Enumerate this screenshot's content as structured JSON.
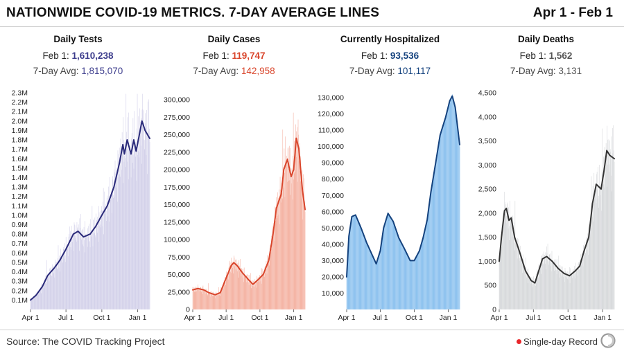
{
  "header": {
    "title": "NATIONWIDE COVID-19 METRICS. 7-DAY AVERAGE LINES",
    "range": "Apr 1 - Feb 1"
  },
  "footer": {
    "source": "Source: The COVID Tracking Project",
    "legend_label": "Single-day Record",
    "legend_color": "#e8262a"
  },
  "panels": [
    {
      "title": "Daily Tests",
      "latest_label": "Feb 1:",
      "latest_value": "1,610,238",
      "avg_label": "7-Day Avg:",
      "avg_value": "1,815,070",
      "accent": "#3c3c8c"
    },
    {
      "title": "Daily Cases",
      "latest_label": "Feb 1:",
      "latest_value": "119,747",
      "avg_label": "7-Day Avg:",
      "avg_value": "142,958",
      "accent": "#d9452b"
    },
    {
      "title": "Currently Hospitalized",
      "latest_label": "Feb 1:",
      "latest_value": "93,536",
      "avg_label": "7-Day Avg:",
      "avg_value": "101,117",
      "accent": "#14427e"
    },
    {
      "title": "Daily Deaths",
      "latest_label": "Feb 1:",
      "latest_value": "1,562",
      "avg_label": "7-Day Avg:",
      "avg_value": "3,131",
      "accent": "#555555"
    }
  ],
  "chart_data": [
    {
      "type": "bar",
      "title": "Daily Tests",
      "x_range": [
        "2020-04-01",
        "2021-02-01"
      ],
      "x_ticks": [
        {
          "date": "2020-04-01",
          "label": "Apr 1"
        },
        {
          "date": "2020-07-01",
          "label": "Jul 1"
        },
        {
          "date": "2020-10-01",
          "label": "Oct 1"
        },
        {
          "date": "2021-01-01",
          "label": "Jan 1"
        }
      ],
      "ylim": [
        0,
        2300000
      ],
      "y_ticks": [
        {
          "value": 100000,
          "label": "0.1M"
        },
        {
          "value": 200000,
          "label": "0.2M"
        },
        {
          "value": 300000,
          "label": "0.3M"
        },
        {
          "value": 400000,
          "label": "0.4M"
        },
        {
          "value": 500000,
          "label": "0.5M"
        },
        {
          "value": 600000,
          "label": "0.6M"
        },
        {
          "value": 700000,
          "label": "0.7M"
        },
        {
          "value": 800000,
          "label": "0.8M"
        },
        {
          "value": 900000,
          "label": "0.9M"
        },
        {
          "value": 1000000,
          "label": "1.0M"
        },
        {
          "value": 1100000,
          "label": "1.1M"
        },
        {
          "value": 1200000,
          "label": "1.2M"
        },
        {
          "value": 1300000,
          "label": "1.3M"
        },
        {
          "value": 1400000,
          "label": "1.4M"
        },
        {
          "value": 1500000,
          "label": "1.5M"
        },
        {
          "value": 1600000,
          "label": "1.6M"
        },
        {
          "value": 1700000,
          "label": "1.7M"
        },
        {
          "value": 1800000,
          "label": "1.8M"
        },
        {
          "value": 1900000,
          "label": "1.9M"
        },
        {
          "value": 2000000,
          "label": "2.0M"
        },
        {
          "value": 2100000,
          "label": "2.1M"
        },
        {
          "value": 2200000,
          "label": "2.2M"
        },
        {
          "value": 2300000,
          "label": "2.3M"
        }
      ],
      "bar_color": "#d4d2ea",
      "line_color": "#2a2a7a",
      "series": [
        {
          "name": "7-Day Avg",
          "points": [
            [
              "2020-04-01",
              100000
            ],
            [
              "2020-04-15",
              150000
            ],
            [
              "2020-05-01",
              240000
            ],
            [
              "2020-05-15",
              360000
            ],
            [
              "2020-06-01",
              440000
            ],
            [
              "2020-06-15",
              520000
            ],
            [
              "2020-07-01",
              640000
            ],
            [
              "2020-07-20",
              800000
            ],
            [
              "2020-08-01",
              830000
            ],
            [
              "2020-08-15",
              770000
            ],
            [
              "2020-09-01",
              800000
            ],
            [
              "2020-09-15",
              880000
            ],
            [
              "2020-10-01",
              1000000
            ],
            [
              "2020-10-15",
              1100000
            ],
            [
              "2020-11-01",
              1300000
            ],
            [
              "2020-11-15",
              1550000
            ],
            [
              "2020-11-24",
              1750000
            ],
            [
              "2020-11-28",
              1650000
            ],
            [
              "2020-12-05",
              1800000
            ],
            [
              "2020-12-15",
              1650000
            ],
            [
              "2020-12-22",
              1800000
            ],
            [
              "2020-12-28",
              1680000
            ],
            [
              "2021-01-05",
              1850000
            ],
            [
              "2021-01-12",
              2000000
            ],
            [
              "2021-01-20",
              1900000
            ],
            [
              "2021-02-01",
              1815070
            ]
          ]
        }
      ]
    },
    {
      "type": "bar",
      "title": "Daily Cases",
      "x_range": [
        "2020-04-01",
        "2021-02-01"
      ],
      "x_ticks": [
        {
          "date": "2020-04-01",
          "label": "Apr 1"
        },
        {
          "date": "2020-07-01",
          "label": "Jul 1"
        },
        {
          "date": "2020-10-01",
          "label": "Oct 1"
        },
        {
          "date": "2021-01-01",
          "label": "Jan 1"
        }
      ],
      "ylim": [
        0,
        310000
      ],
      "y_ticks": [
        {
          "value": 0,
          "label": "0"
        },
        {
          "value": 25000,
          "label": "25,000"
        },
        {
          "value": 50000,
          "label": "50,000"
        },
        {
          "value": 75000,
          "label": "75,000"
        },
        {
          "value": 100000,
          "label": "100,000"
        },
        {
          "value": 125000,
          "label": "125,000"
        },
        {
          "value": 150000,
          "label": "150,000"
        },
        {
          "value": 175000,
          "label": "175,000"
        },
        {
          "value": 200000,
          "label": "200,000"
        },
        {
          "value": 225000,
          "label": "225,000"
        },
        {
          "value": 250000,
          "label": "250,000"
        },
        {
          "value": 275000,
          "label": "275,000"
        },
        {
          "value": 300000,
          "label": "300,000"
        }
      ],
      "bar_color": "#f5b5a6",
      "line_color": "#d9452b",
      "series": [
        {
          "name": "7-Day Avg",
          "points": [
            [
              "2020-04-01",
              28000
            ],
            [
              "2020-04-15",
              30000
            ],
            [
              "2020-05-01",
              28000
            ],
            [
              "2020-05-15",
              24000
            ],
            [
              "2020-06-01",
              21000
            ],
            [
              "2020-06-15",
              24000
            ],
            [
              "2020-07-01",
              45000
            ],
            [
              "2020-07-15",
              63000
            ],
            [
              "2020-07-22",
              67000
            ],
            [
              "2020-08-01",
              62000
            ],
            [
              "2020-08-15",
              52000
            ],
            [
              "2020-09-01",
              42000
            ],
            [
              "2020-09-12",
              36000
            ],
            [
              "2020-09-25",
              42000
            ],
            [
              "2020-10-10",
              50000
            ],
            [
              "2020-10-25",
              70000
            ],
            [
              "2020-11-05",
              105000
            ],
            [
              "2020-11-15",
              145000
            ],
            [
              "2020-11-28",
              165000
            ],
            [
              "2020-12-05",
              200000
            ],
            [
              "2020-12-15",
              215000
            ],
            [
              "2020-12-25",
              190000
            ],
            [
              "2021-01-01",
              200000
            ],
            [
              "2021-01-08",
              245000
            ],
            [
              "2021-01-15",
              230000
            ],
            [
              "2021-01-25",
              170000
            ],
            [
              "2021-02-01",
              142958
            ]
          ]
        }
      ]
    },
    {
      "type": "area",
      "title": "Currently Hospitalized",
      "x_range": [
        "2020-04-01",
        "2021-02-01"
      ],
      "x_ticks": [
        {
          "date": "2020-04-01",
          "label": "Apr 1"
        },
        {
          "date": "2020-07-01",
          "label": "Jul 1"
        },
        {
          "date": "2020-10-01",
          "label": "Oct 1"
        },
        {
          "date": "2021-01-01",
          "label": "Jan 1"
        }
      ],
      "ylim": [
        0,
        133000
      ],
      "y_ticks": [
        {
          "value": 10000,
          "label": "10,000"
        },
        {
          "value": 20000,
          "label": "20,000"
        },
        {
          "value": 30000,
          "label": "30,000"
        },
        {
          "value": 40000,
          "label": "40,000"
        },
        {
          "value": 50000,
          "label": "50,000"
        },
        {
          "value": 60000,
          "label": "60,000"
        },
        {
          "value": 70000,
          "label": "70,000"
        },
        {
          "value": 80000,
          "label": "80,000"
        },
        {
          "value": 90000,
          "label": "90,000"
        },
        {
          "value": 100000,
          "label": "100,000"
        },
        {
          "value": 110000,
          "label": "110,000"
        },
        {
          "value": 120000,
          "label": "120,000"
        },
        {
          "value": 130000,
          "label": "130,000"
        }
      ],
      "bar_color": "#8fc3ef",
      "line_color": "#14427e",
      "series": [
        {
          "name": "7-Day Avg",
          "points": [
            [
              "2020-04-01",
              20000
            ],
            [
              "2020-04-07",
              45000
            ],
            [
              "2020-04-15",
              57000
            ],
            [
              "2020-04-25",
              58000
            ],
            [
              "2020-05-10",
              50000
            ],
            [
              "2020-05-25",
              41000
            ],
            [
              "2020-06-10",
              33000
            ],
            [
              "2020-06-20",
              28000
            ],
            [
              "2020-07-01",
              36000
            ],
            [
              "2020-07-10",
              50000
            ],
            [
              "2020-07-22",
              59000
            ],
            [
              "2020-08-05",
              54000
            ],
            [
              "2020-08-20",
              44000
            ],
            [
              "2020-09-05",
              37000
            ],
            [
              "2020-09-20",
              30000
            ],
            [
              "2020-10-01",
              30000
            ],
            [
              "2020-10-15",
              36000
            ],
            [
              "2020-10-25",
              44000
            ],
            [
              "2020-11-05",
              55000
            ],
            [
              "2020-11-15",
              72000
            ],
            [
              "2020-11-28",
              90000
            ],
            [
              "2020-12-10",
              107000
            ],
            [
              "2020-12-25",
              118000
            ],
            [
              "2021-01-05",
              128000
            ],
            [
              "2021-01-12",
              131000
            ],
            [
              "2021-01-20",
              124000
            ],
            [
              "2021-02-01",
              101117
            ]
          ]
        }
      ]
    },
    {
      "type": "bar",
      "title": "Daily Deaths",
      "x_range": [
        "2020-04-01",
        "2021-02-01"
      ],
      "x_ticks": [
        {
          "date": "2020-04-01",
          "label": "Apr 1"
        },
        {
          "date": "2020-07-01",
          "label": "Jul 1"
        },
        {
          "date": "2020-10-01",
          "label": "Oct 1"
        },
        {
          "date": "2021-01-01",
          "label": "Jan 1"
        }
      ],
      "ylim": [
        0,
        4500
      ],
      "y_ticks": [
        {
          "value": 0,
          "label": "0"
        },
        {
          "value": 500,
          "label": "500"
        },
        {
          "value": 1000,
          "label": "1,000"
        },
        {
          "value": 1500,
          "label": "1,500"
        },
        {
          "value": 2000,
          "label": "2,000"
        },
        {
          "value": 2500,
          "label": "2,500"
        },
        {
          "value": 3000,
          "label": "3,000"
        },
        {
          "value": 3500,
          "label": "3,500"
        },
        {
          "value": 4000,
          "label": "4,000"
        },
        {
          "value": 4500,
          "label": "4,500"
        }
      ],
      "bar_color": "#d8dadc",
      "line_color": "#333333",
      "series": [
        {
          "name": "7-Day Avg",
          "points": [
            [
              "2020-04-01",
              1000
            ],
            [
              "2020-04-07",
              1500
            ],
            [
              "2020-04-15",
              2050
            ],
            [
              "2020-04-20",
              2100
            ],
            [
              "2020-04-27",
              1850
            ],
            [
              "2020-05-03",
              1900
            ],
            [
              "2020-05-12",
              1500
            ],
            [
              "2020-05-25",
              1200
            ],
            [
              "2020-06-10",
              800
            ],
            [
              "2020-06-25",
              600
            ],
            [
              "2020-07-05",
              550
            ],
            [
              "2020-07-15",
              800
            ],
            [
              "2020-07-25",
              1050
            ],
            [
              "2020-08-05",
              1100
            ],
            [
              "2020-08-20",
              1000
            ],
            [
              "2020-09-05",
              850
            ],
            [
              "2020-09-20",
              750
            ],
            [
              "2020-10-05",
              700
            ],
            [
              "2020-10-20",
              800
            ],
            [
              "2020-11-01",
              900
            ],
            [
              "2020-11-12",
              1200
            ],
            [
              "2020-11-25",
              1500
            ],
            [
              "2020-12-05",
              2200
            ],
            [
              "2020-12-15",
              2600
            ],
            [
              "2020-12-28",
              2500
            ],
            [
              "2021-01-05",
              2900
            ],
            [
              "2021-01-12",
              3300
            ],
            [
              "2021-01-20",
              3200
            ],
            [
              "2021-02-01",
              3131
            ]
          ]
        }
      ]
    }
  ]
}
